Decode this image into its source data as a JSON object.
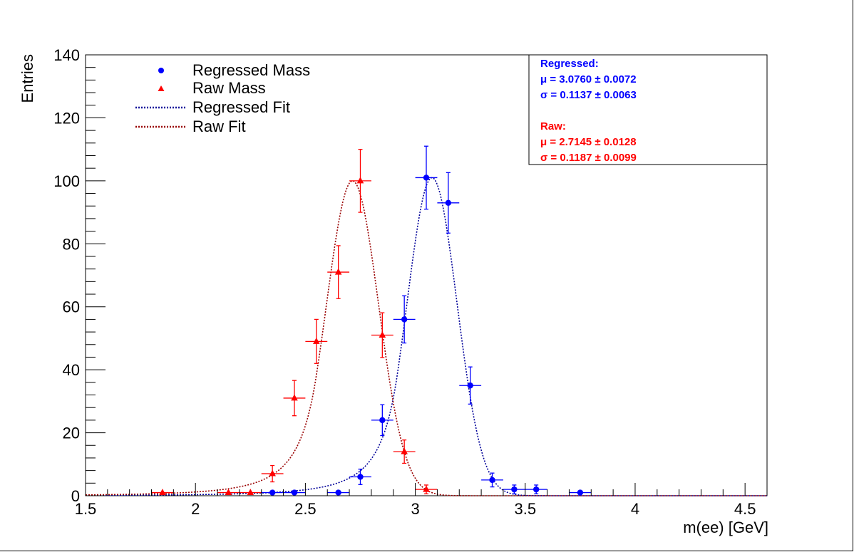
{
  "colors": {
    "regressed": "#0000ff",
    "raw": "#ff0000",
    "regressed_fit": "#000099",
    "raw_fit": "#990000",
    "axis": "#000000"
  },
  "legend": {
    "regressed_mass": "Regressed Mass",
    "raw_mass": "Raw Mass",
    "regressed_fit": "Regressed Fit",
    "raw_fit": "Raw Fit"
  },
  "stats_box": {
    "regressed_header": "Regressed:",
    "regressed_mu": "μ = 3.0760 ± 0.0072",
    "regressed_sigma": "σ = 0.1137 ± 0.0063",
    "raw_header": "Raw:",
    "raw_mu": "μ = 2.7145 ± 0.0128",
    "raw_sigma": "σ = 0.1187 ± 0.0099"
  },
  "chart_data": {
    "type": "scatter",
    "xlabel": "m(ee) [GeV]",
    "ylabel": "Entries",
    "xlim": [
      1.5,
      4.6
    ],
    "ylim": [
      0,
      140
    ],
    "x_ticks": [
      "1.5",
      "2",
      "2.5",
      "3",
      "3.5",
      "4",
      "4.5"
    ],
    "y_ticks": [
      "0",
      "20",
      "40",
      "60",
      "80",
      "100",
      "120",
      "140"
    ],
    "legend_position": "top-left",
    "series": [
      {
        "name": "Regressed Mass",
        "marker": "circle",
        "points": [
          {
            "x": 2.35,
            "y": 1,
            "xerr": 0.05,
            "yerr": 0
          },
          {
            "x": 2.45,
            "y": 1,
            "xerr": 0.05,
            "yerr": 0
          },
          {
            "x": 2.65,
            "y": 1,
            "xerr": 0.05,
            "yerr": 0
          },
          {
            "x": 2.75,
            "y": 6,
            "xerr": 0.05,
            "yerr": 2.45
          },
          {
            "x": 2.85,
            "y": 24,
            "xerr": 0.05,
            "yerr": 4.9
          },
          {
            "x": 2.95,
            "y": 56,
            "xerr": 0.05,
            "yerr": 7.5
          },
          {
            "x": 3.05,
            "y": 101,
            "xerr": 0.05,
            "yerr": 10.0
          },
          {
            "x": 3.15,
            "y": 93,
            "xerr": 0.05,
            "yerr": 9.6
          },
          {
            "x": 3.25,
            "y": 35,
            "xerr": 0.05,
            "yerr": 5.9
          },
          {
            "x": 3.35,
            "y": 5,
            "xerr": 0.05,
            "yerr": 2.2
          },
          {
            "x": 3.45,
            "y": 2,
            "xerr": 0.05,
            "yerr": 1.4
          },
          {
            "x": 3.55,
            "y": 2,
            "xerr": 0.05,
            "yerr": 1.4
          },
          {
            "x": 3.75,
            "y": 1,
            "xerr": 0.05,
            "yerr": 0
          }
        ]
      },
      {
        "name": "Raw Mass",
        "marker": "triangle",
        "points": [
          {
            "x": 1.85,
            "y": 1,
            "xerr": 0.05,
            "yerr": 0
          },
          {
            "x": 2.15,
            "y": 1,
            "xerr": 0.05,
            "yerr": 0
          },
          {
            "x": 2.25,
            "y": 1,
            "xerr": 0.05,
            "yerr": 0
          },
          {
            "x": 2.35,
            "y": 7,
            "xerr": 0.05,
            "yerr": 2.6
          },
          {
            "x": 2.45,
            "y": 31,
            "xerr": 0.05,
            "yerr": 5.6
          },
          {
            "x": 2.55,
            "y": 49,
            "xerr": 0.05,
            "yerr": 7.0
          },
          {
            "x": 2.65,
            "y": 71,
            "xerr": 0.05,
            "yerr": 8.4
          },
          {
            "x": 2.75,
            "y": 100,
            "xerr": 0.05,
            "yerr": 10.0
          },
          {
            "x": 2.85,
            "y": 51,
            "xerr": 0.05,
            "yerr": 7.1
          },
          {
            "x": 2.95,
            "y": 14,
            "xerr": 0.05,
            "yerr": 3.7
          },
          {
            "x": 3.05,
            "y": 2,
            "xerr": 0.05,
            "yerr": 1.4
          }
        ]
      }
    ],
    "fits": [
      {
        "name": "Regressed Fit",
        "mean": 3.076,
        "sigma": 0.1137,
        "peak": 101,
        "tail": "left",
        "style": "dotted"
      },
      {
        "name": "Raw Fit",
        "mean": 2.7145,
        "sigma": 0.1187,
        "peak": 100,
        "tail": "left",
        "style": "dotted"
      }
    ]
  }
}
